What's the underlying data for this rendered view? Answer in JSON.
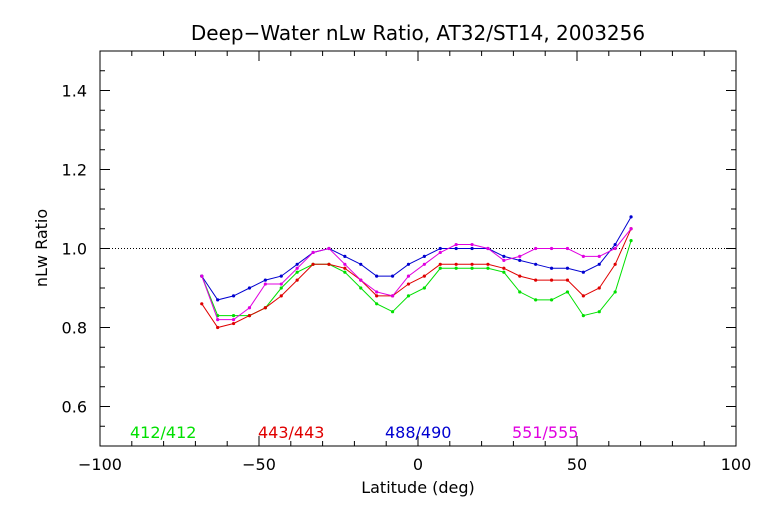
{
  "chart_data": {
    "type": "line",
    "title": "Deep−Water nLw Ratio, AT32/ST14, 2003256",
    "xlabel": "Latitude (deg)",
    "ylabel": "nLw Ratio",
    "xlim": [
      -100,
      100
    ],
    "ylim": [
      0.5,
      1.5
    ],
    "x_ticks": [
      -100,
      -50,
      0,
      50,
      100
    ],
    "x_tick_labels": [
      "−100",
      "−50",
      "0",
      "50",
      "100"
    ],
    "y_ticks": [
      0.6,
      0.8,
      1.0,
      1.2,
      1.4
    ],
    "y_tick_labels": [
      "0.6",
      "0.8",
      "1.0",
      "1.2",
      "1.4"
    ],
    "reference_line": 1.0,
    "legend_placement": "bottom",
    "x": [
      -68,
      -63,
      -58,
      -53,
      -48,
      -43,
      -38,
      -33,
      -28,
      -23,
      -18,
      -13,
      -8,
      -3,
      2,
      7,
      12,
      17,
      22,
      27,
      32,
      37,
      42,
      47,
      52,
      57,
      62,
      67
    ],
    "series": [
      {
        "name": "412/412",
        "color": "#00e000",
        "values": [
          0.93,
          0.83,
          0.83,
          0.83,
          0.85,
          0.9,
          0.94,
          0.96,
          0.96,
          0.94,
          0.9,
          0.86,
          0.84,
          0.88,
          0.9,
          0.95,
          0.95,
          0.95,
          0.95,
          0.94,
          0.89,
          0.87,
          0.87,
          0.89,
          0.83,
          0.84,
          0.89,
          1.02
        ]
      },
      {
        "name": "443/443",
        "color": "#e00000",
        "values": [
          0.86,
          0.8,
          0.81,
          0.83,
          0.85,
          0.88,
          0.92,
          0.96,
          0.96,
          0.95,
          0.92,
          0.88,
          0.88,
          0.91,
          0.93,
          0.96,
          0.96,
          0.96,
          0.96,
          0.95,
          0.93,
          0.92,
          0.92,
          0.92,
          0.88,
          0.9,
          0.96,
          1.05
        ]
      },
      {
        "name": "488/490",
        "color": "#0000d0",
        "values": [
          0.93,
          0.87,
          0.88,
          0.9,
          0.92,
          0.93,
          0.96,
          0.99,
          1.0,
          0.98,
          0.96,
          0.93,
          0.93,
          0.96,
          0.98,
          1.0,
          1.0,
          1.0,
          1.0,
          0.98,
          0.97,
          0.96,
          0.95,
          0.95,
          0.94,
          0.96,
          1.01,
          1.08
        ]
      },
      {
        "name": "551/555",
        "color": "#e000e0",
        "values": [
          0.93,
          0.82,
          0.82,
          0.85,
          0.91,
          0.91,
          0.95,
          0.99,
          1.0,
          0.96,
          0.92,
          0.89,
          0.88,
          0.93,
          0.96,
          0.99,
          1.01,
          1.01,
          1.0,
          0.97,
          0.98,
          1.0,
          1.0,
          1.0,
          0.98,
          0.98,
          1.0,
          1.05
        ]
      }
    ]
  }
}
